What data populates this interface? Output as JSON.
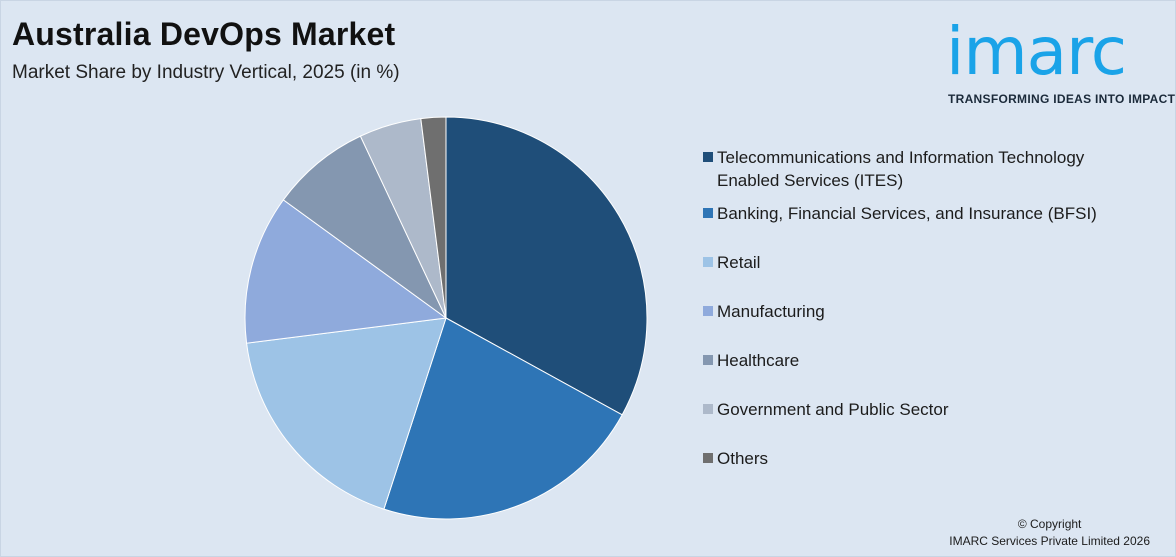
{
  "header": {
    "title": "Australia DevOps Market",
    "subtitle": "Market Share by Industry Vertical, 2025 (in %)"
  },
  "logo": {
    "word": "imarc",
    "tagline": "TRANSFORMING IDEAS INTO IMPACT",
    "color": "#1aa3e8"
  },
  "chart_data": {
    "type": "pie",
    "title": "",
    "start_angle_deg": 0,
    "direction": "clockwise",
    "slices": [
      {
        "label": "Telecommunications and Information Technology Enabled Services (ITES)",
        "value": 33,
        "color": "#1f4e79"
      },
      {
        "label": "Banking, Financial Services, and Insurance (BFSI)",
        "value": 22,
        "color": "#2e75b6"
      },
      {
        "label": "Retail",
        "value": 18,
        "color": "#9dc3e6"
      },
      {
        "label": "Manufacturing",
        "value": 12,
        "color": "#8faadc"
      },
      {
        "label": "Healthcare",
        "value": 8,
        "color": "#8497b0"
      },
      {
        "label": "Government and Public Sector",
        "value": 5,
        "color": "#adb9ca"
      },
      {
        "label": "Others",
        "value": 2,
        "color": "#6f6f6f"
      }
    ],
    "legend_position": "right"
  },
  "footer": {
    "line1": "© Copyright",
    "line2": "IMARC Services Private Limited 2026"
  }
}
